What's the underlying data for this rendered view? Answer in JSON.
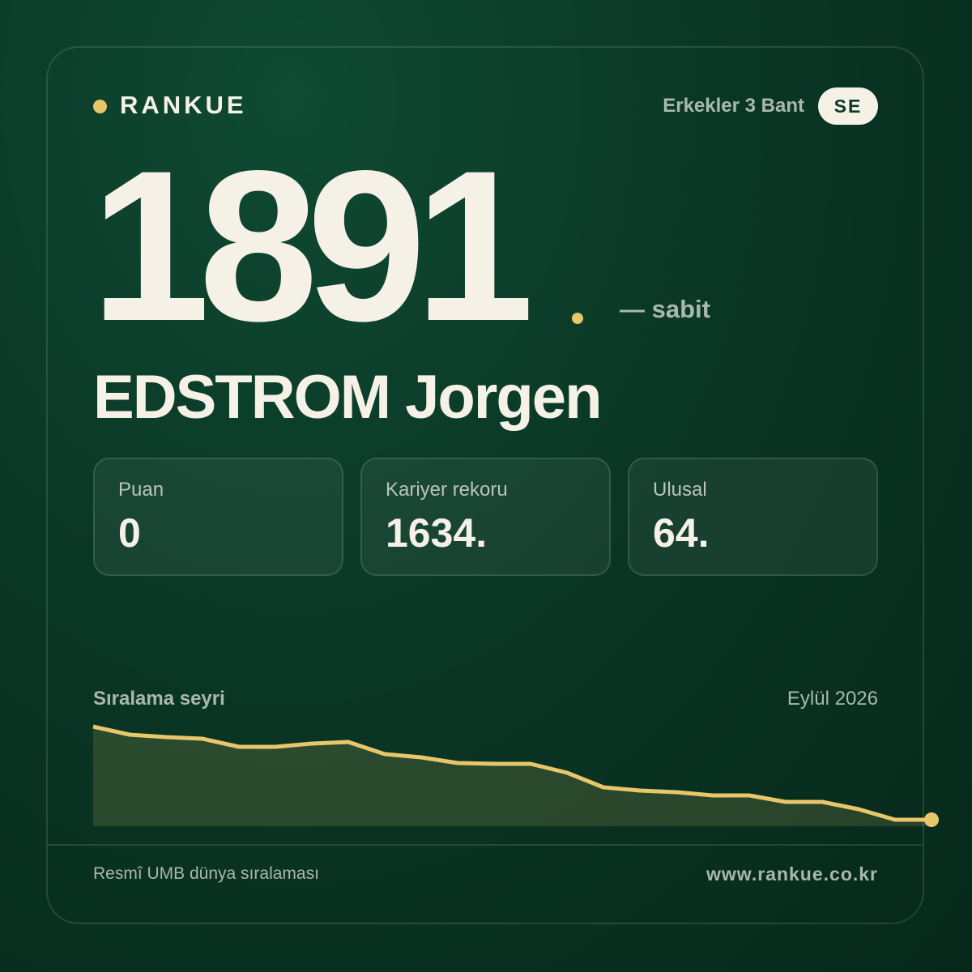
{
  "header": {
    "brand": "RANKUE",
    "category": "Erkekler 3 Bant",
    "country": "SE"
  },
  "rank": {
    "value": "1891",
    "change": "— sabit"
  },
  "player": {
    "name": "EDSTROM Jorgen"
  },
  "stats": [
    {
      "label": "Puan",
      "value": "0"
    },
    {
      "label": "Kariyer rekoru",
      "value": "1634."
    },
    {
      "label": "Ulusal",
      "value": "64."
    }
  ],
  "chart_data": {
    "type": "area",
    "title": "Sıralama seyri",
    "date": "Eylül 2026",
    "color": "#e8c66a",
    "values": [
      123,
      113,
      110,
      108,
      98,
      98,
      102,
      104,
      89,
      85,
      78,
      77,
      77,
      66,
      48,
      44,
      42,
      38,
      38,
      30,
      30,
      21,
      8,
      8
    ]
  },
  "footer": {
    "left": "Resmî UMB dünya sıralaması",
    "right": "www.rankue.co.kr"
  }
}
